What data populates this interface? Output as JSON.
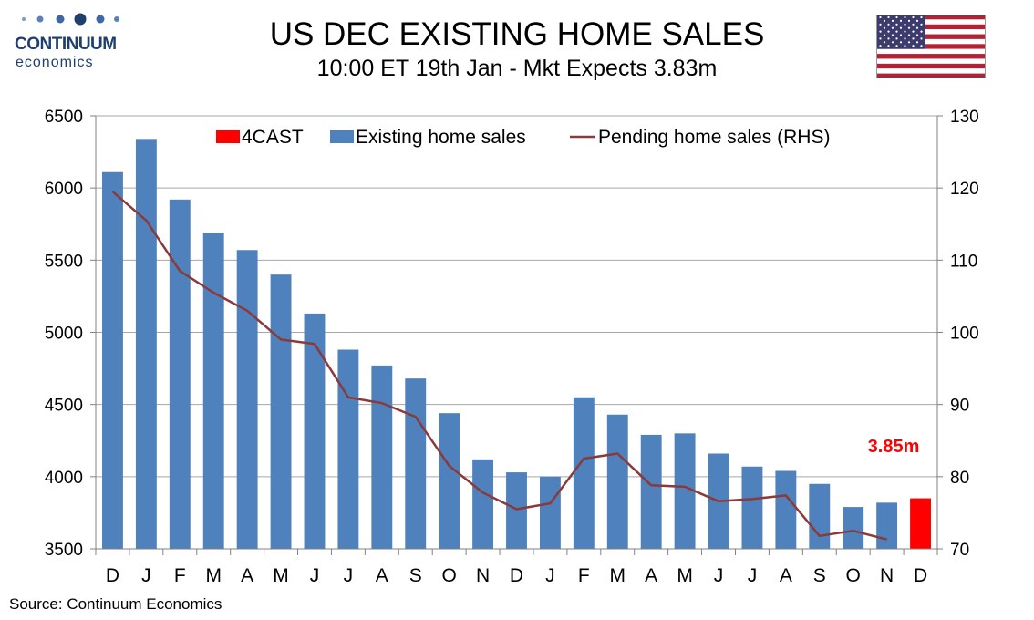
{
  "header": {
    "logo_name": "CONTINUUM",
    "logo_sub": "economics",
    "title": "US DEC EXISTING HOME SALES",
    "subtitle": "10:00 ET 19th Jan - Mkt Expects 3.83m"
  },
  "footer": {
    "source": "Source: Continuum Economics"
  },
  "colors": {
    "existing_bar": "#4f81bd",
    "forecast_bar": "#ff0000",
    "pending_line": "#8b3a3a",
    "logo": "#1f3f6e",
    "grid": "#a6a6a6"
  },
  "chart_data": {
    "type": "bar",
    "categories": [
      "D",
      "J",
      "F",
      "M",
      "A",
      "M",
      "J",
      "J",
      "A",
      "S",
      "O",
      "N",
      "D",
      "J",
      "F",
      "M",
      "A",
      "M",
      "J",
      "J",
      "A",
      "S",
      "O",
      "N",
      "D"
    ],
    "series": [
      {
        "name": "4CAST",
        "type": "bar",
        "axis": "left",
        "values": [
          null,
          null,
          null,
          null,
          null,
          null,
          null,
          null,
          null,
          null,
          null,
          null,
          null,
          null,
          null,
          null,
          null,
          null,
          null,
          null,
          null,
          null,
          null,
          null,
          3850
        ]
      },
      {
        "name": "Existing home sales",
        "type": "bar",
        "axis": "left",
        "values": [
          6110,
          6340,
          5920,
          5690,
          5570,
          5400,
          5130,
          4880,
          4770,
          4680,
          4440,
          4120,
          4030,
          4000,
          4550,
          4430,
          4290,
          4300,
          4160,
          4070,
          4040,
          3950,
          3790,
          3820,
          null
        ]
      },
      {
        "name": "Pending home sales (RHS)",
        "type": "line",
        "axis": "right",
        "values": [
          119.5,
          115.5,
          108.5,
          105.5,
          103,
          99,
          98.4,
          91,
          90.2,
          88.3,
          81.5,
          77.8,
          75.5,
          76.3,
          82.5,
          83.2,
          78.8,
          78.6,
          76.6,
          76.9,
          77.4,
          71.8,
          72.5,
          71.3,
          null
        ]
      }
    ],
    "y_left": {
      "min": 3500,
      "max": 6500,
      "ticks": [
        3500,
        4000,
        4500,
        5000,
        5500,
        6000,
        6500
      ]
    },
    "y_right": {
      "min": 70,
      "max": 130,
      "ticks": [
        70,
        80,
        90,
        100,
        110,
        120,
        130
      ]
    },
    "legend": [
      "4CAST",
      "Existing home sales",
      "Pending home sales (RHS)"
    ],
    "legend_position": "top-center",
    "annotation": "3.85m",
    "grid": true
  }
}
